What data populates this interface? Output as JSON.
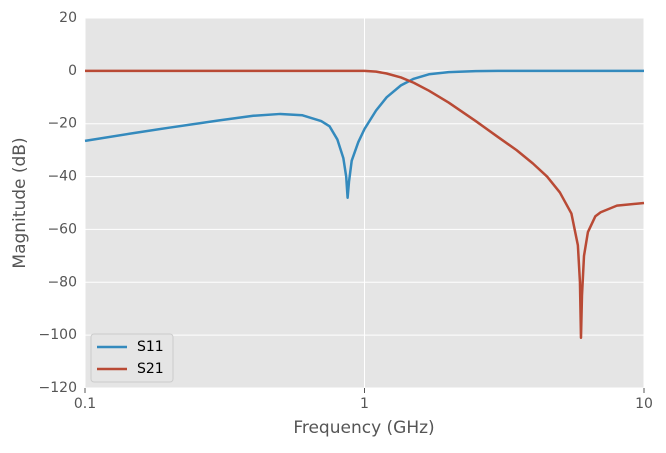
{
  "chart_data": {
    "type": "line",
    "xlabel": "Frequency (GHz)",
    "ylabel": "Magnitude (dB)",
    "xscale": "log",
    "grid": true,
    "legend": "lower left",
    "x": [
      0.1,
      0.15,
      0.2,
      0.3,
      0.4,
      0.5,
      0.6,
      0.7,
      0.75,
      0.8,
      0.84,
      0.86,
      0.87,
      0.88,
      0.9,
      0.95,
      1,
      1.1,
      1.2,
      1.35,
      1.5,
      1.7,
      2,
      2.5,
      3,
      3.5,
      4,
      4.5,
      5,
      5.5,
      5.8,
      5.9,
      5.95,
      6,
      6.1,
      6.3,
      6.7,
      7,
      8,
      10
    ],
    "series": [
      {
        "name": "S11",
        "color": "#348abd",
        "values": [
          -26.5,
          -23.5,
          -21.5,
          -18.8,
          -17,
          -16.3,
          -16.8,
          -19,
          -21,
          -26,
          -33,
          -40,
          -48,
          -42,
          -34,
          -27,
          -22,
          -15,
          -10,
          -5.5,
          -3,
          -1.3,
          -0.5,
          -0.1,
          0,
          0,
          0,
          0,
          0,
          0,
          0,
          0,
          0,
          0,
          0,
          0,
          0,
          0,
          0,
          0
        ]
      },
      {
        "name": "S21",
        "color": "#b94a35",
        "values": [
          0,
          0,
          0,
          0,
          0,
          0,
          0,
          0,
          0,
          0,
          0,
          0,
          0,
          0,
          0,
          0,
          0,
          -0.3,
          -1,
          -2.5,
          -4.5,
          -7.5,
          -12,
          -19,
          -25,
          -30,
          -35,
          -40,
          -46,
          -54,
          -66,
          -80,
          -101,
          -85,
          -70,
          -61,
          -55,
          -53.5,
          -51,
          -50
        ]
      }
    ],
    "xlim": [
      0.1,
      10
    ],
    "xticks": [
      0.1,
      1,
      10
    ],
    "ylim": [
      -120,
      20
    ],
    "yticks": [
      {
        "value": -120,
        "label": "−120"
      },
      {
        "value": -100,
        "label": "−100"
      },
      {
        "value": -80,
        "label": "−80"
      },
      {
        "value": -60,
        "label": "−60"
      },
      {
        "value": -40,
        "label": "−40"
      },
      {
        "value": -20,
        "label": "−20"
      },
      0,
      20
    ]
  }
}
